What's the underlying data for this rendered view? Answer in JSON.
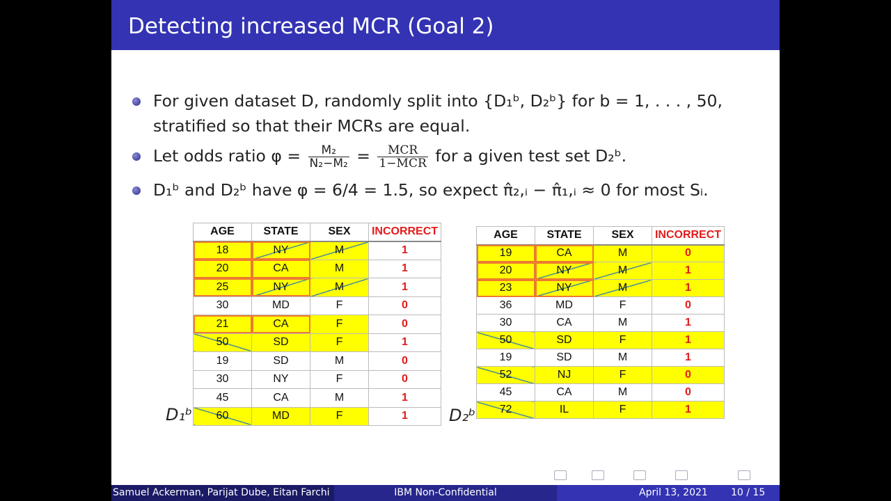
{
  "header": {
    "title": "Detecting increased MCR (Goal 2)"
  },
  "bullets": [
    [
      {
        "text": "For given dataset D, randomly split into {D₁ᵇ, D₂ᵇ} for b = 1, . . . , 50, stratified so that their MCRs are equal."
      }
    ],
    [
      {
        "text": "Let odds ratio φ ="
      },
      {
        "num": "M₂",
        "den": "N₂−M₂"
      },
      {
        "text": "="
      },
      {
        "num": "MCR",
        "den": "1−MCR",
        "serif": true
      },
      {
        "text": "for a given test set D₂ᵇ."
      }
    ],
    [
      {
        "text": "D₁ᵇ and D₂ᵇ have φ = 6/4 = 1.5, so expect π̂₂,ᵢ − π̂₁,ᵢ ≈ 0 for most Sᵢ."
      }
    ]
  ],
  "tables": [
    {
      "label": "D₁ᵇ",
      "columns": [
        "AGE",
        "STATE",
        "SEX",
        "INCORRECT"
      ],
      "rows": [
        [
          "18",
          "NY",
          "M",
          "1"
        ],
        [
          "20",
          "CA",
          "M",
          "1"
        ],
        [
          "25",
          "NY",
          "M",
          "1"
        ],
        [
          "30",
          "MD",
          "F",
          "0"
        ],
        [
          "21",
          "CA",
          "F",
          "0"
        ],
        [
          "50",
          "SD",
          "F",
          "1"
        ],
        [
          "19",
          "SD",
          "M",
          "0"
        ],
        [
          "30",
          "NY",
          "F",
          "0"
        ],
        [
          "45",
          "CA",
          "M",
          "1"
        ],
        [
          "60",
          "MD",
          "F",
          "1"
        ]
      ]
    },
    {
      "label": "D₂ᵇ",
      "columns": [
        "AGE",
        "STATE",
        "SEX",
        "INCORRECT"
      ],
      "rows": [
        [
          "19",
          "CA",
          "M",
          "0"
        ],
        [
          "20",
          "NY",
          "M",
          "1"
        ],
        [
          "23",
          "NY",
          "M",
          "1"
        ],
        [
          "36",
          "MD",
          "F",
          "0"
        ],
        [
          "30",
          "CA",
          "M",
          "1"
        ],
        [
          "50",
          "SD",
          "F",
          "1"
        ],
        [
          "19",
          "SD",
          "M",
          "1"
        ],
        [
          "52",
          "NJ",
          "F",
          "0"
        ],
        [
          "45",
          "CA",
          "M",
          "0"
        ],
        [
          "72",
          "IL",
          "F",
          "1"
        ]
      ]
    }
  ],
  "footer": {
    "authors": "Samuel Ackerman, Parijat Dube, Eitan Farchi",
    "center": "IBM Non-Confidential",
    "date": "April 13, 2021",
    "page": "10 / 15"
  }
}
